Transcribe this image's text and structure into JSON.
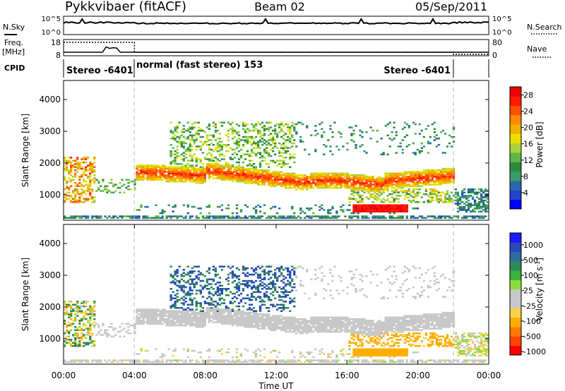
{
  "header": {
    "station": "Pykkvibaer (fitACF)",
    "beam": "Beam 02",
    "date": "05/Sep/2011"
  },
  "status_panels": {
    "nsky_label": "N.Sky",
    "nsky_ticks": [
      "10^5",
      "10^0"
    ],
    "nsearch_label": "N.Search",
    "nsearch_ticks": [
      "10^5",
      "10^0"
    ],
    "freq_label": "Freq.",
    "freq_unit": "[MHz]",
    "freq_ticks": [
      "18",
      "8"
    ],
    "nave_label": "Nave",
    "nave_ticks": [
      "80",
      "0"
    ],
    "cpid_label": "CPID",
    "cpid_segments": [
      {
        "label": "Stereo -6401",
        "start_h": 0,
        "end_h": 4
      },
      {
        "label": "normal (fast stereo) 153",
        "start_h": 4,
        "end_h": 22
      },
      {
        "label": "Stereo -6401",
        "start_h": 22,
        "end_h": 24
      }
    ]
  },
  "colors": {
    "power": [
      "#0000ff",
      "#2244cc",
      "#2a6aa8",
      "#3a9a6a",
      "#2e8b3e",
      "#5cb84a",
      "#aad23a",
      "#e8e000",
      "#f0b000",
      "#ff8a00",
      "#ff5000",
      "#ff1a00",
      "#ee0000"
    ],
    "velocity": [
      "#1a1aff",
      "#2a4ab8",
      "#2f6aa0",
      "#2e8b57",
      "#36b43c",
      "#8ddc3a",
      "#c8c8c8",
      "#c8c8c8",
      "#f6d24a",
      "#ffae00",
      "#ff7a00",
      "#ff4400",
      "#ff0000"
    ]
  },
  "chart_data": [
    {
      "type": "heatmap",
      "name": "power",
      "ylabel": "Slant Range [km]",
      "xlim": [
        0,
        24
      ],
      "ylim": [
        200,
        4600
      ],
      "yticks": [
        "1000",
        "2000",
        "3000",
        "4000"
      ],
      "colorbar": {
        "label": "Power [dB]",
        "range": [
          0,
          30
        ],
        "ticks": [
          "4",
          "8",
          "12",
          "16",
          "20",
          "24",
          "28"
        ]
      },
      "features": [
        {
          "desc": "main echo band",
          "x": [
            4.0,
            22.0
          ],
          "range_km": [
            1300,
            1800
          ],
          "power_db": 22
        },
        {
          "desc": "strong patch",
          "x": [
            16.2,
            19.4
          ],
          "range_km": [
            450,
            650
          ],
          "power_db": 28
        },
        {
          "desc": "early echoes",
          "x": [
            0.0,
            1.8
          ],
          "range_km": [
            700,
            2200
          ],
          "power_db": 20
        },
        {
          "desc": "upper patchy echoes",
          "x": [
            6.0,
            13.0
          ],
          "range_km": [
            1800,
            3300
          ],
          "power_db": 14
        }
      ]
    },
    {
      "type": "heatmap",
      "name": "velocity",
      "ylabel": "Slant Range [km]",
      "xlabel": "Time UT",
      "xlim": [
        0,
        24
      ],
      "ylim": [
        200,
        4600
      ],
      "yticks": [
        "1000",
        "2000",
        "3000",
        "4000"
      ],
      "xticks": [
        "00:00",
        "04:00",
        "08:00",
        "12:00",
        "16:00",
        "20:00",
        "00:00"
      ],
      "colorbar": {
        "label": "Velocity [m s",
        "label_sup": "-1",
        "label_end": "]",
        "ticks": [
          "1000",
          "500",
          "100",
          "25",
          "-25",
          "-100",
          "-500",
          "-1000"
        ]
      },
      "features": [
        {
          "desc": "ground scatter band",
          "x": [
            4.0,
            22.0
          ],
          "range_km": [
            1300,
            1800
          ],
          "velocity": 0
        },
        {
          "desc": "receding patch",
          "x": [
            16.2,
            19.4
          ],
          "range_km": [
            400,
            700
          ],
          "velocity": -300
        },
        {
          "desc": "approaching echoes",
          "x": [
            8.0,
            11.5
          ],
          "range_km": [
            1900,
            2700
          ],
          "velocity": 600
        }
      ]
    }
  ]
}
